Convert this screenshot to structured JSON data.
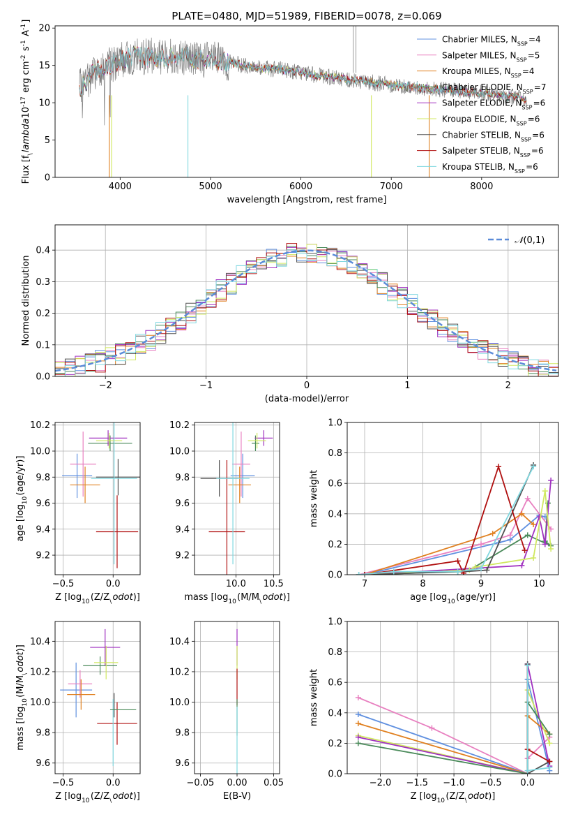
{
  "figure": {
    "title": "PLATE=0480, MJD=51989, FIBERID=0078, z=0.069"
  },
  "model_labels": [
    "Chabrier MILES, N$_{SSP}$=4",
    "Salpeter MILES, N$_{SSP}$=5",
    "Kroupa MILES, N$_{SSP}$=4",
    "Chabrier ELODIE, N$_{SSP}$=7",
    "Salpeter ELODIE, N$_{SSP}$=6",
    "Kroupa ELODIE, N$_{SSP}$=6",
    "Chabrier STELIB, N$_{SSP}$=6",
    "Salpeter STELIB, N$_{SSP}$=6",
    "Kroupa STELIB, N$_{SSP}$=6"
  ],
  "chart_data": [
    {
      "id": "spectrum",
      "type": "line",
      "xlabel": "wavelength [Angstrom, rest frame]",
      "ylabel": "Flux [f$_\\lambda$10$^{-17}$ erg cm$^{-2}$ s$^{-1}$ A$^{-1}$]",
      "xlim": [
        3280,
        8850
      ],
      "ylim": [
        0,
        20.3
      ],
      "xticks": [
        "4000",
        "5000",
        "6000",
        "7000",
        "8000"
      ],
      "yticks": [
        "0",
        "5",
        "10",
        "15",
        "20"
      ],
      "grid": false,
      "legend_position": "upper right",
      "continuum_x": [
        3550,
        3700,
        3800,
        3900,
        4000,
        4100,
        4200,
        4300,
        4400,
        4500,
        4600,
        4700,
        4800,
        4900,
        5000,
        5100,
        5200,
        5400,
        5600,
        5800,
        6000,
        6200,
        6400,
        6600,
        6800,
        7000,
        7200,
        7400,
        7600,
        7800,
        8000,
        8200,
        8400,
        8500
      ],
      "continuum_y": [
        12.0,
        13.8,
        14.8,
        15.2,
        15.6,
        16.0,
        16.2,
        16.2,
        16.3,
        16.2,
        16.3,
        16.2,
        16.0,
        15.8,
        15.8,
        15.6,
        15.4,
        14.9,
        14.6,
        14.4,
        14.1,
        13.6,
        13.3,
        13.0,
        12.7,
        12.4,
        12.1,
        11.9,
        11.7,
        11.5,
        11.3,
        11.0,
        10.7,
        10.4
      ],
      "series": [
        {
          "name": "Chabrier MILES, N$_{SSP}$=4",
          "color": "#6090e0"
        },
        {
          "name": "Salpeter MILES, N$_{SSP}$=5",
          "color": "#e880c0"
        },
        {
          "name": "Kroupa MILES, N$_{SSP}$=4",
          "color": "#e08020"
        },
        {
          "name": "Chabrier ELODIE, N$_{SSP}$=7",
          "color": "#4a8a5a"
        },
        {
          "name": "Salpeter ELODIE, N$_{SSP}$=6",
          "color": "#a030c0"
        },
        {
          "name": "Kroupa ELODIE, N$_{SSP}$=6",
          "color": "#d0e860"
        },
        {
          "name": "Chabrier STELIB, N$_{SSP}$=6",
          "color": "#505050"
        },
        {
          "name": "Salpeter STELIB, N$_{SSP}$=6",
          "color": "#b01010"
        },
        {
          "name": "Kroupa STELIB, N$_{SSP}$=6",
          "color": "#80d8e0"
        }
      ]
    },
    {
      "id": "residuals",
      "type": "histogram",
      "xlabel": "(data-model)/error",
      "ylabel": "Normed distribution",
      "xlim": [
        -2.5,
        2.5
      ],
      "ylim": [
        0,
        0.48
      ],
      "xticks": [
        "−2",
        "−1",
        "0",
        "1",
        "2"
      ],
      "yticks": [
        "0.0",
        "0.1",
        "0.2",
        "0.3",
        "0.4"
      ],
      "grid": true,
      "legend_position": "upper right",
      "reference_curve": {
        "name": "$\\mathcal{N}(0,1)$",
        "color": "#5b8bd8"
      },
      "bin_width": 0.1
    },
    {
      "id": "age_vs_Z",
      "type": "errorbar",
      "xlabel": "Z [log$_{10}$(Z/Z$_\\odot$)]",
      "ylabel": "age  [log$_{10}$(age/yr)]",
      "xlim": [
        -0.58,
        0.27
      ],
      "ylim": [
        9.05,
        10.22
      ],
      "xticks": [
        "−0.5",
        "0.0"
      ],
      "yticks": [
        "9.2",
        "9.4",
        "9.6",
        "9.8",
        "10.0",
        "10.2"
      ],
      "points": [
        {
          "x": -0.36,
          "y": 9.81,
          "xerr": 0.15,
          "yerr": 0.17,
          "color": "#6090e0"
        },
        {
          "x": -0.3,
          "y": 9.9,
          "xerr": 0.13,
          "yerr": 0.25,
          "color": "#e880c0"
        },
        {
          "x": -0.28,
          "y": 9.74,
          "xerr": 0.15,
          "yerr": 0.14,
          "color": "#e08020"
        },
        {
          "x": -0.03,
          "y": 10.06,
          "xerr": 0.22,
          "yerr": 0.06,
          "color": "#4a8a5a"
        },
        {
          "x": -0.05,
          "y": 10.1,
          "xerr": 0.19,
          "yerr": 0.06,
          "color": "#a030c0"
        },
        {
          "x": -0.04,
          "y": 10.08,
          "xerr": 0.13,
          "yerr": 0.06,
          "color": "#d0e860"
        },
        {
          "x": 0.05,
          "y": 9.8,
          "xerr": 0.22,
          "yerr": 0.14,
          "color": "#505050"
        },
        {
          "x": 0.04,
          "y": 9.38,
          "xerr": 0.21,
          "yerr": 0.28,
          "color": "#b01010"
        },
        {
          "x": 0.01,
          "y": 9.79,
          "xerr": 0.23,
          "yerr": 0.66,
          "color": "#80d8e0"
        }
      ]
    },
    {
      "id": "age_vs_mass",
      "type": "errorbar",
      "xlabel": "mass [log$_{10}$(M/M$_\\odot$)]",
      "ylabel": "",
      "xlim": [
        9.45,
        10.58
      ],
      "ylim": [
        9.05,
        10.22
      ],
      "xticks": [
        "10.0",
        "10.5"
      ],
      "yticks": [
        "9.2",
        "9.4",
        "9.6",
        "9.8",
        "10.0",
        "10.2"
      ],
      "points": [
        {
          "x": 10.09,
          "y": 9.81,
          "xerr": 0.16,
          "yerr": 0.17,
          "color": "#6090e0"
        },
        {
          "x": 10.07,
          "y": 9.9,
          "xerr": 0.12,
          "yerr": 0.25,
          "color": "#e880c0"
        },
        {
          "x": 10.05,
          "y": 9.74,
          "xerr": 0.15,
          "yerr": 0.14,
          "color": "#e08020"
        },
        {
          "x": 10.26,
          "y": 10.06,
          "xerr": 0.05,
          "yerr": 0.06,
          "color": "#4a8a5a"
        },
        {
          "x": 10.37,
          "y": 10.1,
          "xerr": 0.12,
          "yerr": 0.06,
          "color": "#a030c0"
        },
        {
          "x": 10.28,
          "y": 10.08,
          "xerr": 0.12,
          "yerr": 0.06,
          "color": "#d0e860"
        },
        {
          "x": 9.78,
          "y": 9.79,
          "xerr": 0.25,
          "yerr": 0.14,
          "color": "#505050"
        },
        {
          "x": 9.88,
          "y": 9.38,
          "xerr": 0.24,
          "yerr": 0.55,
          "color": "#b01010"
        },
        {
          "x": 9.96,
          "y": 9.79,
          "xerr": 0.22,
          "yerr": 0.66,
          "color": "#80d8e0"
        }
      ]
    },
    {
      "id": "mass_weight_vs_age",
      "type": "line",
      "xlabel": "age  [log$_{10}$(age/yr)]",
      "ylabel": "mass weight",
      "xlim": [
        6.7,
        10.33
      ],
      "ylim": [
        0,
        1.0
      ],
      "xticks": [
        "7",
        "8",
        "9",
        "10"
      ],
      "yticks": [
        "0.0",
        "0.2",
        "0.4",
        "0.6",
        "0.8",
        "1.0"
      ],
      "grid": true,
      "series": [
        {
          "color": "#6090e0",
          "x": [
            7.0,
            9.3,
            9.5,
            10.0,
            10.1
          ],
          "y": [
            0.0,
            0.21,
            0.23,
            0.39,
            0.38
          ]
        },
        {
          "color": "#e880c0",
          "x": [
            6.9,
            9.0,
            9.5,
            9.8,
            10.2
          ],
          "y": [
            0.0,
            0.2,
            0.26,
            0.5,
            0.3
          ]
        },
        {
          "color": "#e08020",
          "x": [
            7.0,
            9.2,
            9.7,
            9.9
          ],
          "y": [
            0.0,
            0.27,
            0.4,
            0.33
          ]
        },
        {
          "color": "#4a8a5a",
          "x": [
            6.9,
            8.7,
            8.8,
            9.8,
            10.2,
            10.1,
            10.15
          ],
          "y": [
            0.0,
            0.02,
            0.03,
            0.26,
            0.19,
            0.22,
            0.47
          ]
        },
        {
          "color": "#a030c0",
          "x": [
            7.0,
            9.7,
            10.0,
            10.1,
            10.2
          ],
          "y": [
            0.0,
            0.06,
            0.38,
            0.2,
            0.62
          ]
        },
        {
          "color": "#d0e860",
          "x": [
            7.0,
            8.8,
            8.9,
            9.9,
            10.1,
            10.2
          ],
          "y": [
            0.0,
            0.03,
            0.05,
            0.11,
            0.55,
            0.17
          ]
        },
        {
          "color": "#505050",
          "x": [
            7.0,
            8.6,
            8.7,
            9.1,
            9.9
          ],
          "y": [
            0.0,
            0.02,
            0.02,
            0.03,
            0.72
          ]
        },
        {
          "color": "#b01010",
          "x": [
            7.0,
            8.6,
            8.7,
            9.3,
            9.75
          ],
          "y": [
            0.0,
            0.09,
            0.01,
            0.71,
            0.16
          ]
        },
        {
          "color": "#80d8e0",
          "x": [
            6.9,
            7.5,
            8.6,
            9.0,
            9.9
          ],
          "y": [
            0.0,
            0.02,
            0.02,
            0.04,
            0.71
          ]
        }
      ]
    },
    {
      "id": "mass_vs_Z",
      "type": "errorbar",
      "xlabel": "Z [log$_{10}$(Z/Z$_\\odot$)]",
      "ylabel": "mass [log$_{10}$(M/M$_\\odot$)]",
      "xlim": [
        -0.58,
        0.27
      ],
      "ylim": [
        9.53,
        10.53
      ],
      "xticks": [
        "−0.5",
        "0.0"
      ],
      "yticks": [
        "9.6",
        "9.8",
        "10.0",
        "10.2",
        "10.4"
      ],
      "points": [
        {
          "x": -0.37,
          "y": 10.08,
          "xerr": 0.16,
          "yerr": 0.18,
          "color": "#6090e0"
        },
        {
          "x": -0.33,
          "y": 10.12,
          "xerr": 0.12,
          "yerr": 0.09,
          "color": "#e880c0"
        },
        {
          "x": -0.32,
          "y": 10.05,
          "xerr": 0.14,
          "yerr": 0.1,
          "color": "#e08020"
        },
        {
          "x": -0.13,
          "y": 10.24,
          "xerr": 0.17,
          "yerr": 0.06,
          "color": "#4a8a5a"
        },
        {
          "x": -0.08,
          "y": 10.36,
          "xerr": 0.15,
          "yerr": 0.12,
          "color": "#a030c0"
        },
        {
          "x": -0.07,
          "y": 10.26,
          "xerr": 0.12,
          "yerr": 0.11,
          "color": "#d0e860"
        },
        {
          "x": 0.01,
          "y": 9.98,
          "xerr": 0.0,
          "yerr": 0.08,
          "color": "#505050"
        },
        {
          "x": 0.04,
          "y": 9.86,
          "xerr": 0.2,
          "yerr": 0.14,
          "color": "#b01010"
        },
        {
          "x": 0.0,
          "y": 9.8,
          "xerr": 0.0,
          "yerr": 0.22,
          "color": "#80d8e0"
        },
        {
          "x": 0.1,
          "y": 9.95,
          "xerr": 0.13,
          "yerr": 0.0,
          "color": "#4a8a5a"
        }
      ]
    },
    {
      "id": "mass_vs_ebv",
      "type": "errorbar",
      "xlabel": "E(B-V)",
      "ylabel": "",
      "xlim": [
        -0.058,
        0.058
      ],
      "ylim": [
        9.53,
        10.53
      ],
      "xticks": [
        "−0.05",
        "0.00",
        "0.05"
      ],
      "yticks": [
        "9.6",
        "9.8",
        "10.0",
        "10.2",
        "10.4"
      ],
      "points": [
        {
          "x": 0.0,
          "y": 10.36,
          "xerr": 0.0,
          "yerr": 0.12,
          "color": "#a030c0"
        },
        {
          "x": 0.0,
          "y": 10.26,
          "xerr": 0.0,
          "yerr": 0.11,
          "color": "#d0e860"
        },
        {
          "x": 0.0,
          "y": 10.1,
          "xerr": 0.0,
          "yerr": 0.12,
          "color": "#b01010"
        },
        {
          "x": 0.0,
          "y": 9.9,
          "xerr": 0.0,
          "yerr": 0.12,
          "color": "#4a8a5a"
        },
        {
          "x": 0.0,
          "y": 9.75,
          "xerr": 0.0,
          "yerr": 0.22,
          "color": "#80d8e0"
        }
      ]
    },
    {
      "id": "mass_weight_vs_Z",
      "type": "line",
      "xlabel": "Z [log$_{10}$(Z/Z$_\\odot$)]",
      "ylabel": "mass weight",
      "xlim": [
        -2.45,
        0.42
      ],
      "ylim": [
        0,
        1.0
      ],
      "xticks": [
        "−2.0",
        "−1.5",
        "−1.0",
        "−0.5",
        "0.0"
      ],
      "yticks": [
        "0.0",
        "0.2",
        "0.4",
        "0.6",
        "0.8",
        "1.0"
      ],
      "grid": true,
      "series": [
        {
          "color": "#e880c0",
          "x": [
            -2.3,
            -1.3,
            0.0,
            0.0,
            0.3
          ],
          "y": [
            0.5,
            0.3,
            0.0,
            0.1,
            0.24
          ]
        },
        {
          "color": "#6090e0",
          "x": [
            -2.3,
            0.0,
            0.0,
            0.3
          ],
          "y": [
            0.39,
            0.0,
            0.62,
            0.02
          ]
        },
        {
          "color": "#e08020",
          "x": [
            -2.3,
            0.0,
            0.0,
            0.3
          ],
          "y": [
            0.33,
            0.0,
            0.38,
            0.26
          ]
        },
        {
          "color": "#d0e860",
          "x": [
            -2.3,
            0.0,
            0.0,
            0.3
          ],
          "y": [
            0.25,
            0.0,
            0.55,
            0.2
          ]
        },
        {
          "color": "#a030c0",
          "x": [
            -2.3,
            0.0,
            0.0,
            0.3
          ],
          "y": [
            0.24,
            0.0,
            0.72,
            0.05
          ]
        },
        {
          "color": "#4a8a5a",
          "x": [
            -2.3,
            0.0,
            0.0,
            0.3
          ],
          "y": [
            0.2,
            0.0,
            0.47,
            0.26
          ]
        },
        {
          "color": "#505050",
          "x": [
            0.0,
            0.0,
            0.3
          ],
          "y": [
            0.72,
            0.0,
            0.08
          ]
        },
        {
          "color": "#b01010",
          "x": [
            0.0,
            0.0,
            0.3
          ],
          "y": [
            0.71,
            0.16,
            0.08
          ]
        },
        {
          "color": "#80d8e0",
          "x": [
            0.0,
            0.0,
            0.3
          ],
          "y": [
            0.71,
            0.02,
            0.04
          ]
        }
      ]
    }
  ]
}
